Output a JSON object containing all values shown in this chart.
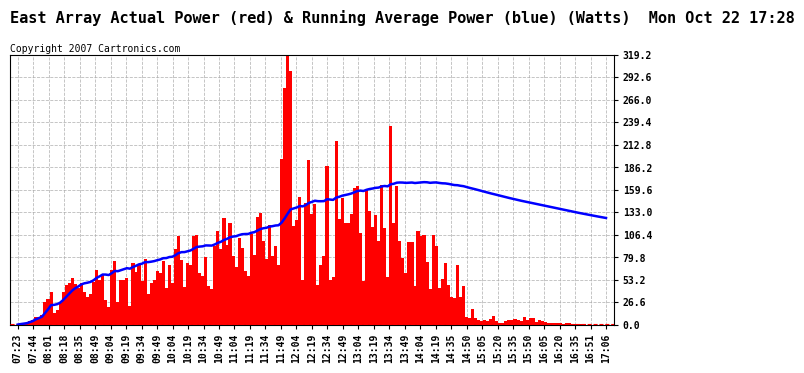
{
  "title": "East Array Actual Power (red) & Running Average Power (blue) (Watts)  Mon Oct 22 17:28",
  "copyright": "Copyright 2007 Cartronics.com",
  "bg_color": "#ffffff",
  "plot_bg_color": "#ffffff",
  "grid_color": "#aaaaaa",
  "bar_color": "#ff0000",
  "avg_color": "#0000ff",
  "dashed_color": "#ff0000",
  "ylim": [
    0.0,
    319.2
  ],
  "yticks": [
    0.0,
    26.6,
    53.2,
    79.8,
    106.4,
    133.0,
    159.6,
    186.2,
    212.8,
    239.4,
    266.0,
    292.6,
    319.2
  ],
  "xtick_labels": [
    "07:23",
    "07:44",
    "08:01",
    "08:18",
    "08:35",
    "08:49",
    "09:04",
    "09:19",
    "09:34",
    "09:49",
    "10:04",
    "10:19",
    "10:34",
    "10:49",
    "11:04",
    "11:19",
    "11:34",
    "11:49",
    "12:04",
    "12:19",
    "12:34",
    "12:49",
    "13:04",
    "13:19",
    "13:34",
    "13:49",
    "14:04",
    "14:19",
    "14:35",
    "14:50",
    "15:05",
    "15:20",
    "15:35",
    "15:50",
    "16:05",
    "16:20",
    "16:35",
    "16:51",
    "17:06"
  ],
  "n_xticks": 39,
  "title_fontsize": 11,
  "tick_fontsize": 7,
  "copyright_fontsize": 7,
  "pts_per_interval": 5
}
